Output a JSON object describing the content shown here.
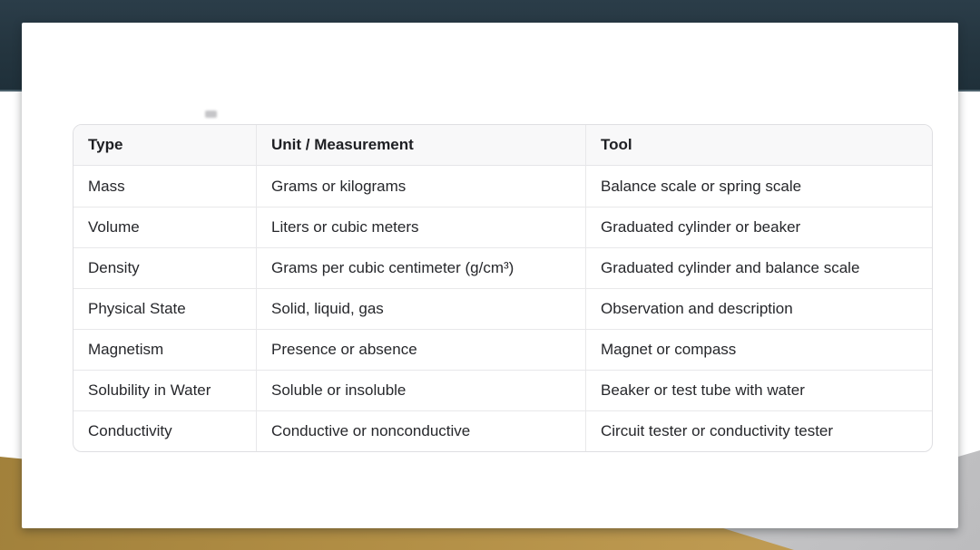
{
  "slide": {
    "colors": {
      "top_band": "#24353F",
      "gold_accent": "#B3914A",
      "gray_accent": "#CACACC",
      "card_background": "#FFFFFF",
      "table_header_background": "#F8F8F9",
      "table_border": "#E6E6E9",
      "text": "#26272B"
    }
  },
  "table": {
    "headers": [
      "Type",
      "Unit / Measurement",
      "Tool"
    ],
    "rows": [
      [
        "Mass",
        "Grams or kilograms",
        "Balance scale or spring scale"
      ],
      [
        "Volume",
        "Liters or cubic meters",
        "Graduated cylinder or beaker"
      ],
      [
        "Density",
        "Grams per cubic centimeter (g/cm³)",
        "Graduated cylinder and balance scale"
      ],
      [
        "Physical State",
        "Solid, liquid, gas",
        "Observation and description"
      ],
      [
        "Magnetism",
        "Presence or absence",
        "Magnet or compass"
      ],
      [
        "Solubility in Water",
        "Soluble or insoluble",
        "Beaker or test tube with water"
      ],
      [
        "Conductivity",
        "Conductive or nonconductive",
        "Circuit tester or conductivity tester"
      ]
    ]
  },
  "chart_data": {
    "type": "table",
    "columns": [
      "Type",
      "Unit / Measurement",
      "Tool"
    ],
    "rows": [
      [
        "Mass",
        "Grams or kilograms",
        "Balance scale or spring scale"
      ],
      [
        "Volume",
        "Liters or cubic meters",
        "Graduated cylinder or beaker"
      ],
      [
        "Density",
        "Grams per cubic centimeter (g/cm³)",
        "Graduated cylinder and balance scale"
      ],
      [
        "Physical State",
        "Solid, liquid, gas",
        "Observation and description"
      ],
      [
        "Magnetism",
        "Presence or absence",
        "Magnet or compass"
      ],
      [
        "Solubility in Water",
        "Soluble or insoluble",
        "Beaker or test tube with water"
      ],
      [
        "Conductivity",
        "Conductive or nonconductive",
        "Circuit tester or conductivity tester"
      ]
    ]
  }
}
